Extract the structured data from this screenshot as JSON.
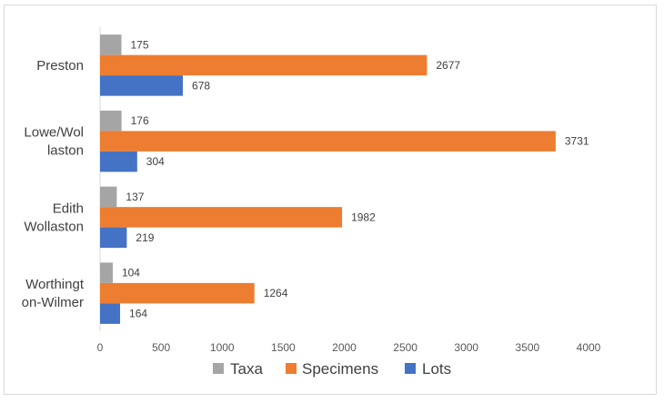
{
  "chart_data": {
    "type": "bar",
    "orientation": "horizontal",
    "categories": [
      "Preston",
      "Lowe/Wollaston",
      "Edith Wollaston",
      "Worthington-Wilmer"
    ],
    "category_label_lines": [
      [
        "Preston"
      ],
      [
        "Lowe/Wol",
        "laston"
      ],
      [
        "Edith",
        "Wollaston"
      ],
      [
        "Worthingt",
        "on-Wilmer"
      ]
    ],
    "series": [
      {
        "name": "Taxa",
        "color": "#a5a5a5",
        "values": [
          175,
          176,
          137,
          104
        ]
      },
      {
        "name": "Specimens",
        "color": "#ed7d31",
        "values": [
          2677,
          3731,
          1982,
          1264
        ]
      },
      {
        "name": "Lots",
        "color": "#4472c4",
        "values": [
          678,
          304,
          219,
          164
        ]
      }
    ],
    "xlim": [
      0,
      4000
    ],
    "x_ticks": [
      0,
      500,
      1000,
      1500,
      2000,
      2500,
      3000,
      3500,
      4000
    ],
    "grid": false,
    "legend_position": "bottom",
    "title": "",
    "xlabel": "",
    "ylabel": ""
  }
}
